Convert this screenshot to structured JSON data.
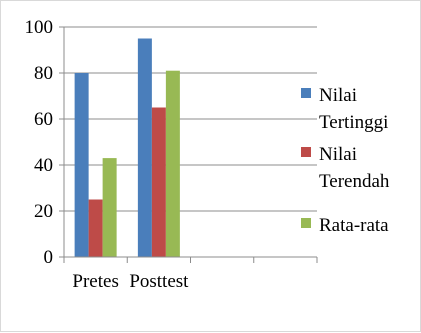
{
  "chart_data": {
    "type": "bar",
    "categories": [
      "Pretes",
      "Posttest",
      "",
      ""
    ],
    "series": [
      {
        "name": "Nilai Tertinggi",
        "legend_lines": [
          "Nilai",
          "Tertinggi"
        ],
        "color": "#4a7ebb",
        "values": [
          80,
          95,
          null,
          null
        ]
      },
      {
        "name": "Nilai Terendah",
        "legend_lines": [
          "Nilai",
          "Terendah"
        ],
        "color": "#be4b48",
        "values": [
          25,
          65,
          null,
          null
        ]
      },
      {
        "name": "Rata-rata",
        "legend_lines": [
          "Rata-rata"
        ],
        "color": "#98b954",
        "values": [
          43,
          81,
          null,
          null
        ]
      }
    ],
    "ylim": [
      0,
      100
    ],
    "yticks": [
      0,
      20,
      40,
      60,
      80,
      100
    ],
    "grid": true,
    "legend_position": "right",
    "title": "",
    "xlabel": "",
    "ylabel": ""
  }
}
